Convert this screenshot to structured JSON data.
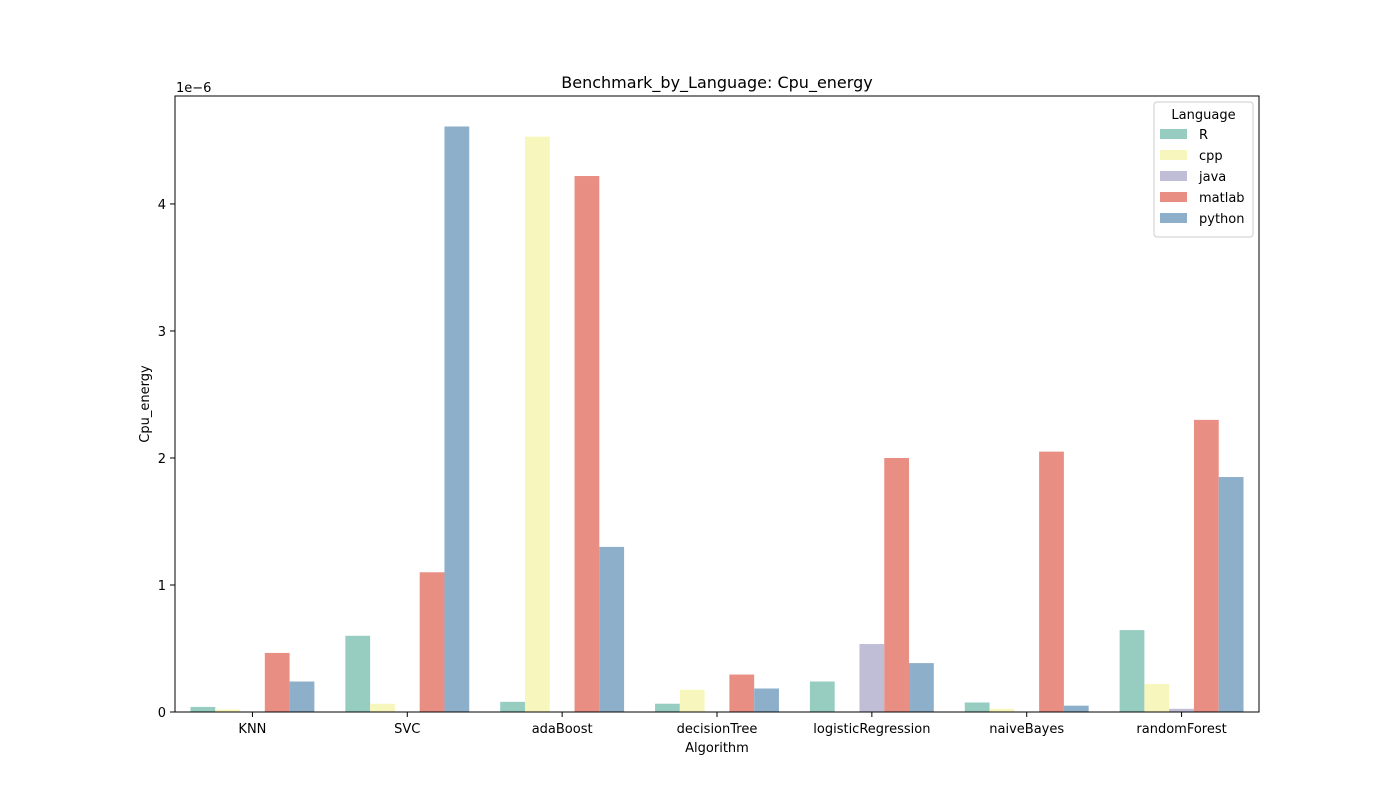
{
  "chart_data": {
    "type": "bar",
    "title": "Benchmark_by_Language: Cpu_energy",
    "xlabel": "Algorithm",
    "ylabel": "Cpu_energy",
    "offset_label": "1e−6",
    "scale": 1e-06,
    "ylim": [
      0,
      4.85
    ],
    "yticks": [
      0,
      1,
      2,
      3,
      4
    ],
    "grid": false,
    "categories": [
      "KNN",
      "SVC",
      "adaBoost",
      "decisionTree",
      "logisticRegression",
      "naiveBayes",
      "randomForest"
    ],
    "legend": {
      "title": "Language",
      "location": "upper right"
    },
    "series": [
      {
        "name": "R",
        "color": "#96cdc0",
        "values": [
          0.04,
          0.6,
          0.08,
          0.065,
          0.24,
          0.075,
          0.645
        ]
      },
      {
        "name": "cpp",
        "color": "#f7f6bd",
        "values": [
          0.02,
          0.065,
          4.53,
          0.175,
          0.0,
          0.025,
          0.22
        ]
      },
      {
        "name": "java",
        "color": "#c0bed6",
        "values": [
          0.0,
          0.0,
          0.0,
          0.0,
          0.535,
          0.0,
          0.025
        ]
      },
      {
        "name": "matlab",
        "color": "#e88e83",
        "values": [
          0.465,
          1.1,
          4.22,
          0.295,
          2.0,
          2.05,
          2.3
        ]
      },
      {
        "name": "python",
        "color": "#8dafca",
        "values": [
          0.24,
          4.61,
          1.3,
          0.185,
          0.385,
          0.05,
          1.85
        ]
      }
    ]
  }
}
